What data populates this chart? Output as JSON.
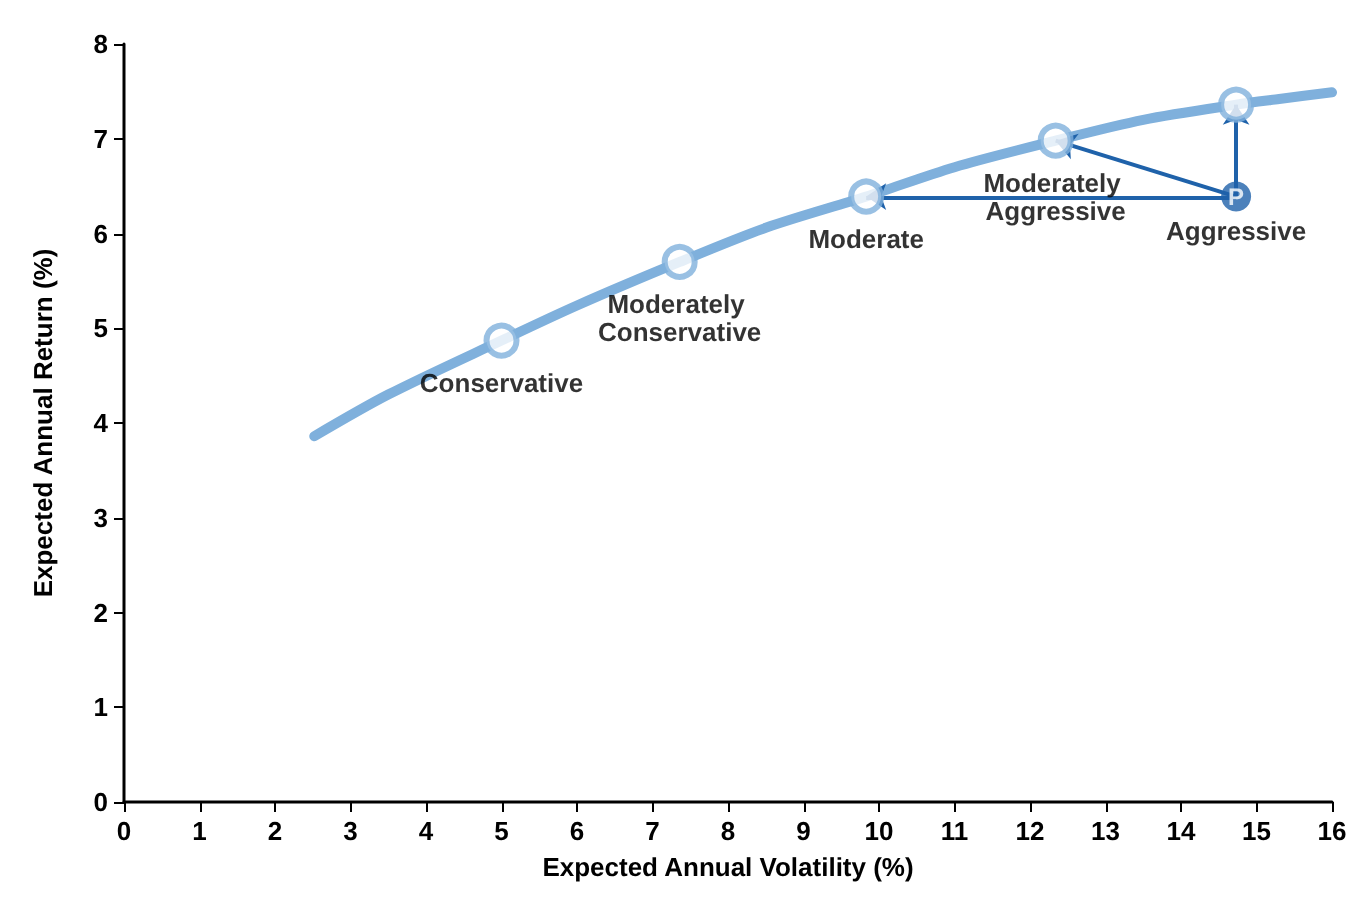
{
  "chart_data": {
    "type": "line",
    "xlabel": "Expected Annual Volatility (%)",
    "ylabel": "Expected Annual Return (%)",
    "xlim": [
      0,
      16
    ],
    "xticks": [
      0,
      1,
      2,
      3,
      4,
      5,
      6,
      7,
      8,
      9,
      10,
      11,
      12,
      13,
      14,
      15,
      16
    ],
    "ylim": [
      0,
      8
    ],
    "yticks": [
      0,
      1,
      2,
      3,
      4,
      5,
      6,
      7,
      8
    ],
    "grid": false,
    "series": [
      {
        "color": "#7fb0dc",
        "marker": "none",
        "x": [
          2.52,
          3.5,
          5.0,
          6.0,
          7.36,
          8.5,
          9.83,
          11.0,
          12.34,
          13.5,
          14.73,
          15.3,
          16
        ],
        "values": [
          3.86,
          4.3,
          4.87,
          5.24,
          5.7,
          6.06,
          6.39,
          6.7,
          6.98,
          7.2,
          7.36,
          7.42,
          7.49
        ]
      },
      {
        "type": "scatter",
        "color": "#7fb0dc",
        "marker": "circle",
        "x": [
          5.0,
          7.36,
          9.83,
          12.34,
          14.73
        ],
        "values": [
          4.87,
          5.7,
          6.39,
          6.98,
          7.36
        ]
      },
      {
        "type": "scatter",
        "color": "#1f62aa",
        "marker": "circle",
        "x": [
          14.73
        ],
        "values": [
          6.39
        ]
      }
    ],
    "annotations": [
      {
        "text": "Conservative",
        "x": 5.0,
        "y": 4.87
      },
      {
        "text": "Moderately Conservative",
        "x": 7.36,
        "y": 5.7
      },
      {
        "text": "Moderate",
        "x": 9.83,
        "y": 6.39
      },
      {
        "text": "Moderately Aggressive",
        "x": 12.34,
        "y": 6.98
      },
      {
        "text": "Aggressive",
        "x": 14.73,
        "y": 7.36
      },
      {
        "text": "P",
        "x": 14.73,
        "y": 6.39
      }
    ]
  }
}
